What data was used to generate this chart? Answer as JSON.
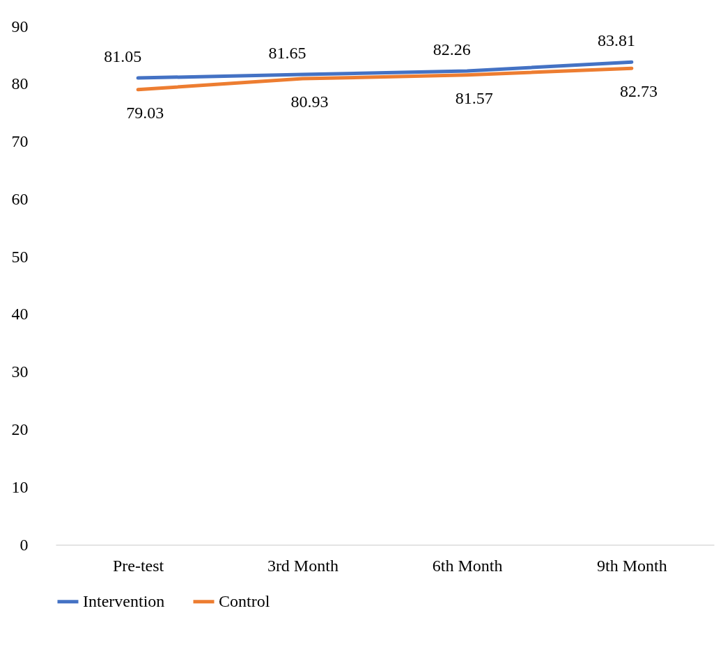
{
  "chart_data": {
    "type": "line",
    "categories": [
      "Pre-test",
      "3rd Month",
      "6th Month",
      "9th Month"
    ],
    "series": [
      {
        "name": "Intervention",
        "color": "#4472c4",
        "values": [
          81.05,
          81.65,
          82.26,
          83.81
        ]
      },
      {
        "name": "Control",
        "color": "#ed7d31",
        "values": [
          79.03,
          80.93,
          81.57,
          82.73
        ]
      }
    ],
    "ylim": [
      0,
      90
    ],
    "yticks": [
      0,
      10,
      20,
      30,
      40,
      50,
      60,
      70,
      80,
      90
    ],
    "grid": false,
    "legend": "bottom",
    "data_labels": true,
    "marker": "none",
    "line_style": "solid"
  }
}
